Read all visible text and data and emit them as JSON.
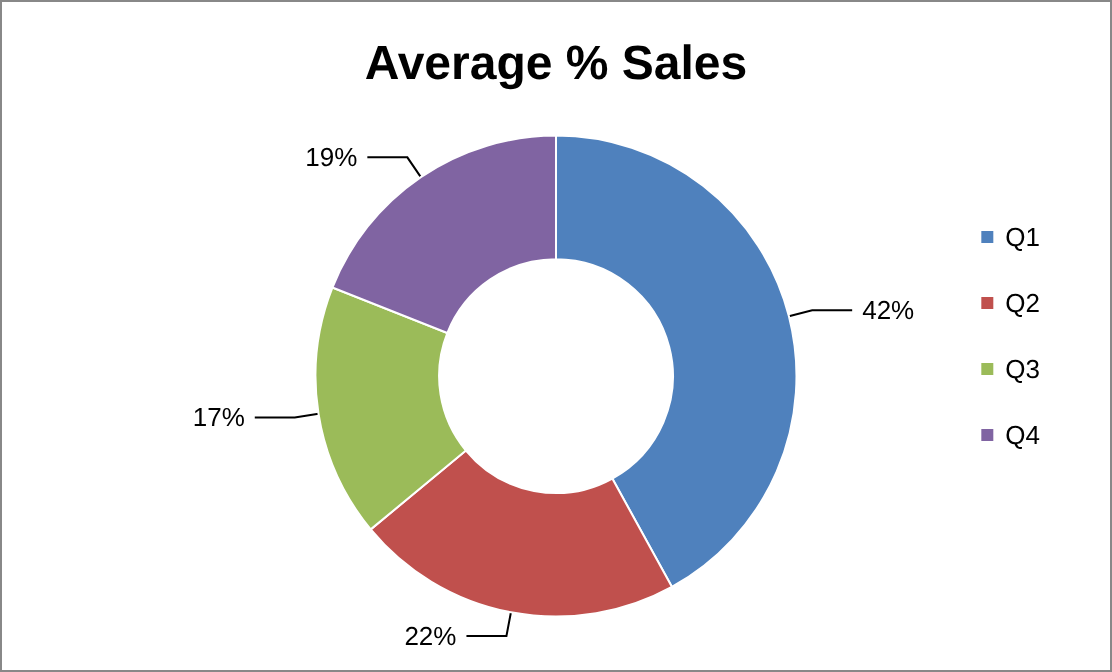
{
  "chart_data": {
    "type": "donut",
    "title": "Average % Sales",
    "categories": [
      "Q1",
      "Q2",
      "Q3",
      "Q4"
    ],
    "values": [
      42,
      22,
      17,
      19
    ],
    "colors": [
      "#4f81bd",
      "#c0504d",
      "#9bbb59",
      "#8064a2"
    ],
    "value_labels": [
      "42%",
      "22%",
      "17%",
      "19%"
    ],
    "legend": "right"
  }
}
